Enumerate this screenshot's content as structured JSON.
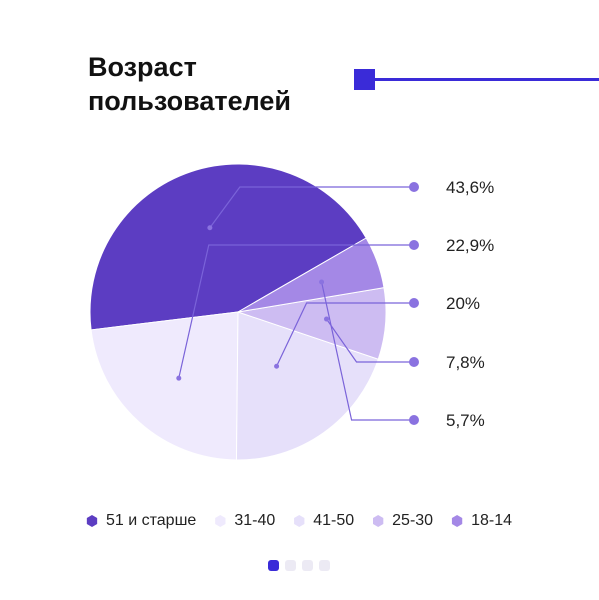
{
  "header": {
    "title_line1": "Возраст",
    "title_line2": "пользователей",
    "accent_color": "#3a2bd8"
  },
  "chart_data": {
    "type": "pie",
    "title": "Возраст пользователей",
    "labels": [
      "51 и старше",
      "31-40",
      "41-50",
      "25-30",
      "18-14"
    ],
    "values": [
      43.6,
      22.9,
      20,
      7.8,
      5.7
    ],
    "value_labels": [
      "43,6%",
      "22,9%",
      "20%",
      "7,8%",
      "5,7%"
    ],
    "colors": [
      "#5c3dc2",
      "#efeafd",
      "#e6e0fa",
      "#cdbcf2",
      "#a488e6"
    ],
    "legend_position": "bottom"
  },
  "legend": {
    "items": [
      {
        "label": "51 и старше",
        "color": "#5c3dc2"
      },
      {
        "label": "31-40",
        "color": "#efeafd"
      },
      {
        "label": "41-50",
        "color": "#e6e0fa"
      },
      {
        "label": "25-30",
        "color": "#cdbcf2"
      },
      {
        "label": "18-14",
        "color": "#a488e6"
      }
    ]
  },
  "pager": {
    "count": 4,
    "active_index": 0
  }
}
